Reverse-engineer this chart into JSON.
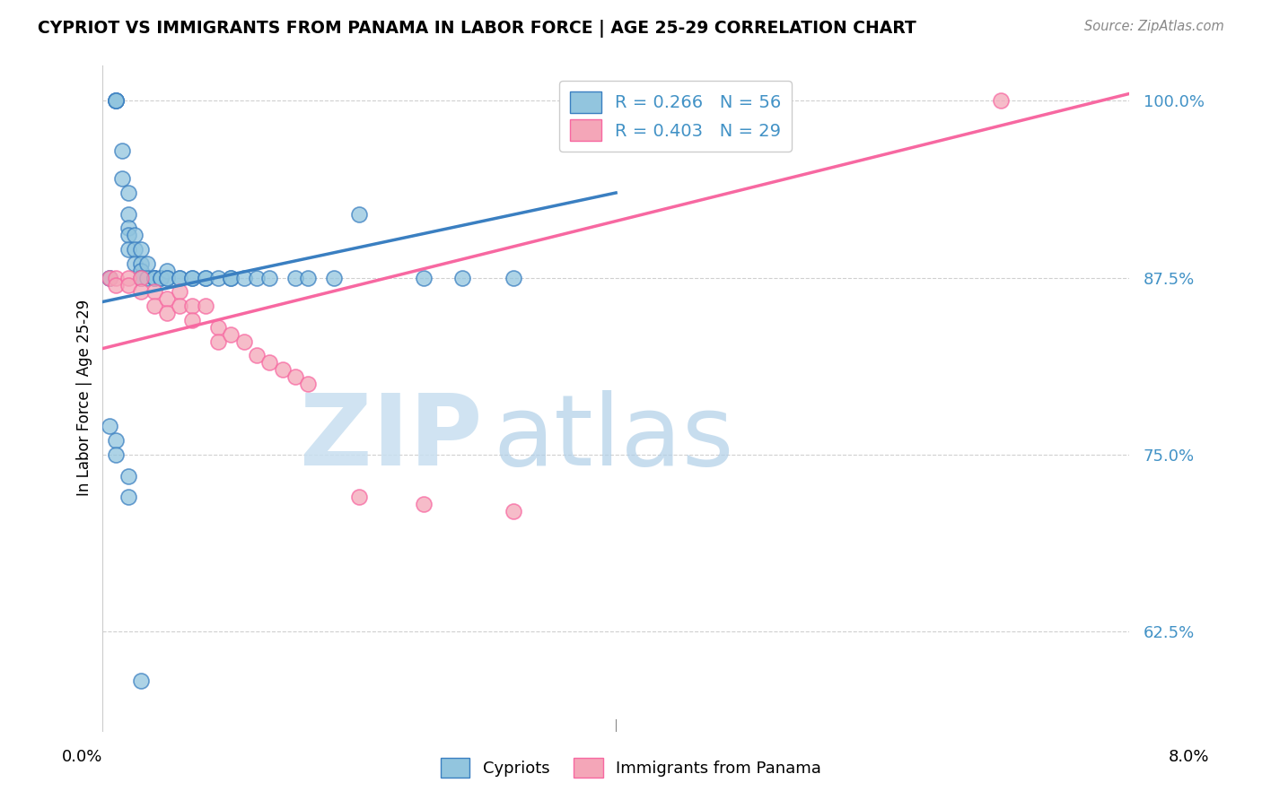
{
  "title": "CYPRIOT VS IMMIGRANTS FROM PANAMA IN LABOR FORCE | AGE 25-29 CORRELATION CHART",
  "source": "Source: ZipAtlas.com",
  "ylabel": "In Labor Force | Age 25-29",
  "ytick_labels": [
    "62.5%",
    "75.0%",
    "87.5%",
    "100.0%"
  ],
  "ytick_values": [
    0.625,
    0.75,
    0.875,
    1.0
  ],
  "xlim": [
    0.0,
    0.08
  ],
  "ylim": [
    0.555,
    1.025
  ],
  "blue_color": "#92c5de",
  "pink_color": "#f4a6b8",
  "line_blue": "#3a7fc1",
  "line_pink": "#e8607a",
  "blue_scatter_x": [
    0.0005,
    0.0005,
    0.001,
    0.001,
    0.001,
    0.001,
    0.0015,
    0.0015,
    0.002,
    0.002,
    0.002,
    0.002,
    0.002,
    0.0025,
    0.0025,
    0.0025,
    0.003,
    0.003,
    0.003,
    0.003,
    0.003,
    0.0035,
    0.0035,
    0.004,
    0.004,
    0.004,
    0.0045,
    0.0045,
    0.005,
    0.005,
    0.005,
    0.006,
    0.006,
    0.007,
    0.007,
    0.008,
    0.008,
    0.009,
    0.01,
    0.01,
    0.011,
    0.012,
    0.013,
    0.015,
    0.016,
    0.018,
    0.02,
    0.025,
    0.028,
    0.032,
    0.0005,
    0.001,
    0.001,
    0.002,
    0.002,
    0.003
  ],
  "blue_scatter_y": [
    0.875,
    0.875,
    1.0,
    1.0,
    1.0,
    1.0,
    0.965,
    0.945,
    0.935,
    0.92,
    0.91,
    0.905,
    0.895,
    0.905,
    0.895,
    0.885,
    0.895,
    0.885,
    0.88,
    0.875,
    0.875,
    0.885,
    0.875,
    0.875,
    0.875,
    0.875,
    0.875,
    0.875,
    0.88,
    0.875,
    0.875,
    0.875,
    0.875,
    0.875,
    0.875,
    0.875,
    0.875,
    0.875,
    0.875,
    0.875,
    0.875,
    0.875,
    0.875,
    0.875,
    0.875,
    0.875,
    0.92,
    0.875,
    0.875,
    0.875,
    0.77,
    0.76,
    0.75,
    0.735,
    0.72,
    0.59
  ],
  "pink_scatter_x": [
    0.0005,
    0.001,
    0.001,
    0.002,
    0.002,
    0.003,
    0.003,
    0.004,
    0.004,
    0.005,
    0.005,
    0.006,
    0.006,
    0.007,
    0.007,
    0.008,
    0.009,
    0.009,
    0.01,
    0.011,
    0.012,
    0.013,
    0.014,
    0.015,
    0.016,
    0.02,
    0.025,
    0.032,
    0.07
  ],
  "pink_scatter_y": [
    0.875,
    0.875,
    0.87,
    0.875,
    0.87,
    0.875,
    0.865,
    0.865,
    0.855,
    0.86,
    0.85,
    0.865,
    0.855,
    0.855,
    0.845,
    0.855,
    0.84,
    0.83,
    0.835,
    0.83,
    0.82,
    0.815,
    0.81,
    0.805,
    0.8,
    0.72,
    0.715,
    0.71,
    1.0
  ],
  "blue_line_x0": 0.0,
  "blue_line_x1": 0.04,
  "blue_line_y0": 0.858,
  "blue_line_y1": 0.935,
  "pink_line_x0": 0.0,
  "pink_line_x1": 0.08,
  "pink_line_y0": 0.825,
  "pink_line_y1": 1.005,
  "legend1_text": "R = 0.266   N = 56",
  "legend2_text": "R = 0.403   N = 29",
  "legend1_color": "#4292c6",
  "legend2_color": "#f768a1",
  "watermark_zip_color": "#c8dff0",
  "watermark_atlas_color": "#b0cfe8"
}
